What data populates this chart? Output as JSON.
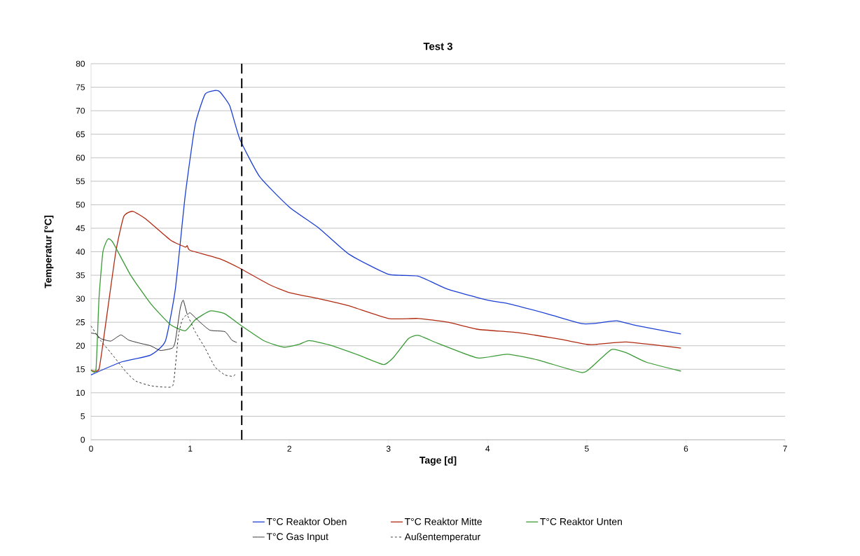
{
  "chart_data": {
    "type": "line",
    "title": "Test 3",
    "xlabel": "Tage [d]",
    "ylabel": "Temperatur [°C]",
    "xlim": [
      0,
      7
    ],
    "xticks": [
      0,
      1,
      2,
      3,
      4,
      5,
      6,
      7
    ],
    "ylim": [
      0,
      80
    ],
    "yticks": [
      0,
      5,
      10,
      15,
      20,
      25,
      30,
      35,
      40,
      45,
      50,
      55,
      60,
      65,
      70,
      75,
      80
    ],
    "grid": "y",
    "legend": "bottom",
    "marker": "none",
    "ref_lines": [
      {
        "axis": "x",
        "value": 1.52,
        "color": "#000000",
        "line_style": "dashed"
      }
    ],
    "series": [
      {
        "name": "T°C Reaktor Oben",
        "color": "#1c3fd4",
        "line_style": "solid",
        "x": [
          0,
          0.3,
          0.6,
          0.75,
          0.85,
          0.95,
          1.05,
          1.15,
          1.25,
          1.3,
          1.4,
          1.5,
          1.7,
          2.0,
          2.3,
          2.6,
          3.0,
          3.3,
          3.6,
          4.0,
          4.2,
          4.6,
          4.95,
          5.1,
          5.3,
          5.5,
          5.95
        ],
        "values": [
          13.8,
          16.5,
          18,
          21,
          32,
          52,
          67,
          73.5,
          74.3,
          74,
          71,
          64,
          56,
          49.5,
          45,
          39.5,
          35.2,
          34.8,
          32,
          29.7,
          29,
          26.8,
          24.7,
          24.8,
          25.3,
          24.3,
          22.5
        ]
      },
      {
        "name": "T°C Reaktor Mitte",
        "color": "#b02a10",
        "line_style": "solid",
        "x": [
          0,
          0.08,
          0.15,
          0.25,
          0.33,
          0.42,
          0.55,
          0.8,
          0.95,
          0.97,
          1.0,
          1.3,
          1.5,
          1.8,
          2.0,
          2.3,
          2.6,
          3.0,
          3.3,
          3.6,
          3.9,
          4.3,
          4.7,
          5.0,
          5.1,
          5.4,
          5.95
        ],
        "values": [
          14.8,
          15,
          25,
          40,
          47.5,
          48.6,
          47,
          42.5,
          41,
          41.3,
          40.3,
          38.5,
          36.5,
          33,
          31.3,
          30,
          28.5,
          25.8,
          25.8,
          25,
          23.5,
          22.8,
          21.5,
          20.3,
          20.3,
          20.8,
          19.5
        ]
      },
      {
        "name": "T°C Reaktor Unten",
        "color": "#3a9a35",
        "line_style": "solid",
        "x": [
          0,
          0.05,
          0.08,
          0.12,
          0.17,
          0.22,
          0.4,
          0.6,
          0.8,
          0.95,
          1.05,
          1.2,
          1.35,
          1.5,
          1.75,
          1.95,
          2.1,
          2.2,
          2.4,
          2.7,
          2.95,
          3.05,
          3.2,
          3.3,
          3.5,
          3.9,
          4.2,
          4.5,
          4.95,
          5.05,
          5.25,
          5.4,
          5.6,
          5.95
        ],
        "values": [
          14.8,
          15,
          30,
          40,
          42.7,
          42,
          35,
          29,
          24.5,
          23.2,
          25.5,
          27.4,
          26.8,
          24.5,
          21,
          19.7,
          20.3,
          21.1,
          20.2,
          18,
          16,
          17.5,
          21.5,
          22.2,
          20.5,
          17.4,
          18.2,
          17,
          14.3,
          15.5,
          19.2,
          18.5,
          16.5,
          14.6
        ]
      },
      {
        "name": "T°C Gas Input",
        "color": "#000000",
        "line_style": "solid",
        "x": [
          0,
          0.05,
          0.1,
          0.2,
          0.3,
          0.38,
          0.5,
          0.6,
          0.7,
          0.82,
          0.85,
          0.9,
          0.93,
          0.97,
          1.0,
          1.1,
          1.2,
          1.35,
          1.42,
          1.47
        ],
        "values": [
          22.7,
          22.5,
          21.5,
          21,
          22.3,
          21.2,
          20.5,
          20,
          19,
          19.5,
          21,
          28,
          29.7,
          26.7,
          27,
          25,
          23.3,
          23,
          21.2,
          20.7
        ]
      },
      {
        "name": "Außentemperatur",
        "color": "#000000",
        "line_style": "dashed",
        "x": [
          0,
          0.1,
          0.2,
          0.35,
          0.45,
          0.6,
          0.75,
          0.83,
          0.88,
          0.92,
          0.97,
          1.05,
          1.15,
          1.25,
          1.35,
          1.43,
          1.46
        ],
        "values": [
          24.2,
          21,
          18.5,
          14.5,
          12.5,
          11.5,
          11.2,
          11.8,
          22,
          25.5,
          26.5,
          23,
          19.5,
          15.5,
          13.8,
          13.5,
          14
        ]
      }
    ]
  }
}
